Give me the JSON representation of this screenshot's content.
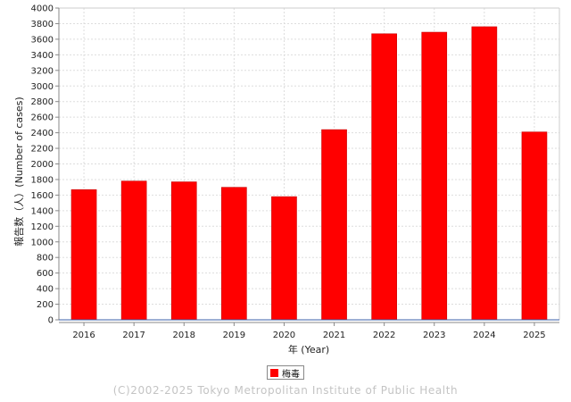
{
  "chart_data": {
    "type": "bar",
    "categories": [
      "2016",
      "2017",
      "2018",
      "2019",
      "2020",
      "2021",
      "2022",
      "2023",
      "2024",
      "2025"
    ],
    "series": [
      {
        "name": "梅毒",
        "values": [
          1670,
          1780,
          1770,
          1700,
          1580,
          2440,
          3670,
          3690,
          3760,
          2410
        ]
      }
    ],
    "xlabel": "年 (Year)",
    "ylabel": "報告数（人）(Number of cases)",
    "ylim": [
      0,
      4000
    ],
    "ytick_step": 200,
    "grid": true,
    "legend": "bottom-center",
    "colors": {
      "bar": "#ff0000",
      "bar_edge": "#c80000",
      "grid": "#dddddd"
    }
  },
  "footer": {
    "copyright": "(C)2002-2025 Tokyo Metropolitan Institute of Public Health"
  }
}
